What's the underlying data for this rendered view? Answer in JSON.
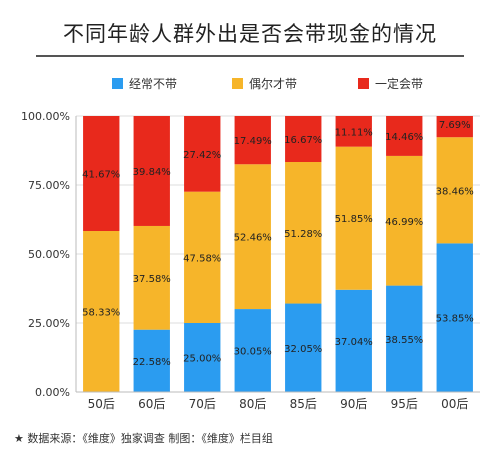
{
  "title": "不同年龄人群外出是否会带现金的情况",
  "footer": "★  数据来源：《维度》独家调查    制图：《维度》栏目组",
  "chart_data": {
    "type": "bar",
    "stacked": true,
    "categories": [
      "50后",
      "60后",
      "70后",
      "80后",
      "85后",
      "90后",
      "95后",
      "00后"
    ],
    "series": [
      {
        "name": "经常不带",
        "color": "#2b9cf0",
        "values": [
          0,
          22.58,
          25.0,
          30.05,
          32.05,
          37.04,
          38.55,
          53.85
        ],
        "labels": [
          "",
          "22.58%",
          "25.00%",
          "30.05%",
          "32.05%",
          "37.04%",
          "38.55%",
          "53.85%"
        ]
      },
      {
        "name": "偶尔才带",
        "color": "#f6b52a",
        "values": [
          58.33,
          37.58,
          47.58,
          52.46,
          51.28,
          51.85,
          46.99,
          38.46
        ],
        "labels": [
          "58.33%",
          "37.58%",
          "47.58%",
          "52.46%",
          "51.28%",
          "51.85%",
          "46.99%",
          "38.46%"
        ]
      },
      {
        "name": "一定会带",
        "color": "#e8291c",
        "values": [
          41.67,
          39.84,
          27.42,
          17.49,
          16.67,
          11.11,
          14.46,
          7.69
        ],
        "labels": [
          "41.67%",
          "39.84%",
          "27.42%",
          "17.49%",
          "16.67%",
          "11.11%",
          "14.46%",
          "7.69%"
        ]
      }
    ],
    "yticks": [
      "0.00%",
      "25.00%",
      "50.00%",
      "75.00%",
      "100.00%"
    ],
    "ylim": [
      0,
      100
    ],
    "grid": true,
    "legend_position": "top"
  }
}
